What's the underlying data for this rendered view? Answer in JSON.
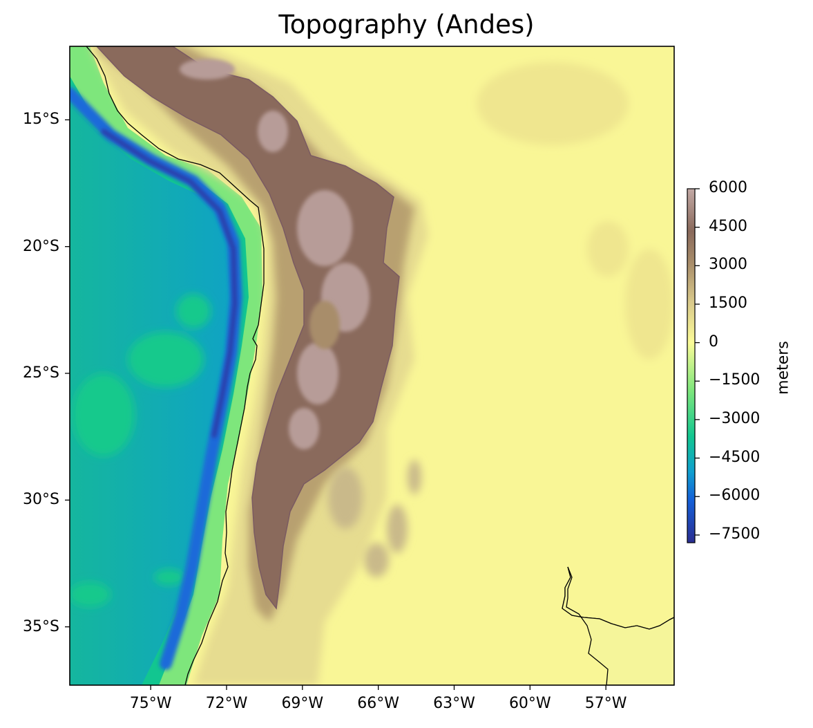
{
  "title": "Topography (Andes)",
  "map": {
    "projection": "PlateCarree",
    "extent": {
      "lon_min": -78.2,
      "lon_max": -54.3,
      "lat_min": -37.3,
      "lat_max": -12.1
    },
    "features": [
      "coastline",
      "bathymetry",
      "topography"
    ],
    "colormap": "terrain"
  },
  "axes": {
    "lat_ticks": [
      {
        "value": -15,
        "label": "15°S"
      },
      {
        "value": -20,
        "label": "20°S"
      },
      {
        "value": -25,
        "label": "25°S"
      },
      {
        "value": -30,
        "label": "30°S"
      },
      {
        "value": -35,
        "label": "35°S"
      }
    ],
    "lon_ticks": [
      {
        "value": -75,
        "label": "75°W"
      },
      {
        "value": -72,
        "label": "72°W"
      },
      {
        "value": -69,
        "label": "69°W"
      },
      {
        "value": -66,
        "label": "66°W"
      },
      {
        "value": -63,
        "label": "63°W"
      },
      {
        "value": -60,
        "label": "60°W"
      },
      {
        "value": -57,
        "label": "57°W"
      }
    ]
  },
  "colorbar": {
    "label": "meters",
    "min": -7800,
    "max": 6000,
    "ticks": [
      {
        "value": 6000,
        "label": "6000"
      },
      {
        "value": 4500,
        "label": "4500"
      },
      {
        "value": 3000,
        "label": "3000"
      },
      {
        "value": 1500,
        "label": "1500"
      },
      {
        "value": 0,
        "label": "0"
      },
      {
        "value": -1500,
        "label": "−1500"
      },
      {
        "value": -3000,
        "label": "−3000"
      },
      {
        "value": -4500,
        "label": "−4500"
      },
      {
        "value": -6000,
        "label": "−6000"
      },
      {
        "value": -7500,
        "label": "−7500"
      }
    ],
    "colors": {
      "deep": "#2b2e91",
      "trench": "#1560d8",
      "ocean": "#109fcf",
      "abyss": "#12c690",
      "shelf": "#7ee67c",
      "coast": "#fbfb98",
      "plain": "#f9f696",
      "low_hills": "#d9c98b",
      "hills": "#a88d6a",
      "mountain": "#8a6a5c",
      "peak": "#c2a9a5"
    }
  }
}
